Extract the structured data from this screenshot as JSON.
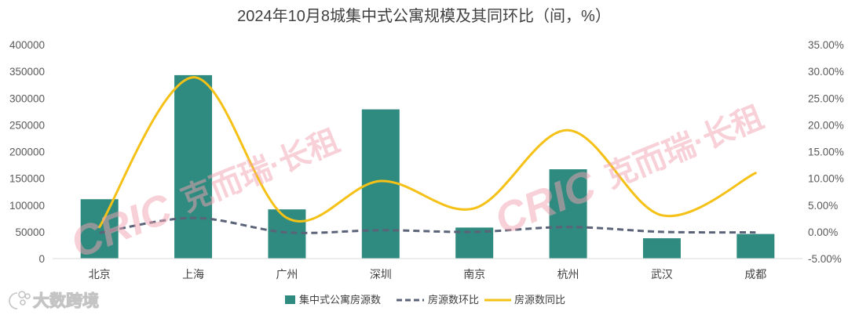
{
  "colors": {
    "bar": "#2F8B7F",
    "mom_line": "#5A6378",
    "yoy_line": "#F5C116",
    "axis_text": "#595959",
    "axis_line": "#D9D9D9",
    "watermark": "#F2A3B3"
  },
  "chart_data": {
    "type": "bar",
    "title": "2024年10月8城集中式公寓规模及其同环比（间，%）",
    "xlabel": "",
    "ylabel": "",
    "categories": [
      "北京",
      "上海",
      "广州",
      "深圳",
      "南京",
      "杭州",
      "武汉",
      "成都"
    ],
    "series": [
      {
        "name": "集中式公寓房源数",
        "type": "bar",
        "axis": "left",
        "values": [
          111000,
          343000,
          92000,
          279000,
          58000,
          167000,
          38000,
          46000
        ]
      },
      {
        "name": "房源数环比",
        "type": "line",
        "style": "dashed",
        "smooth": true,
        "axis": "right",
        "values": [
          -0.2,
          2.6,
          -0.1,
          0.3,
          0.0,
          0.9,
          0.0,
          -0.1
        ]
      },
      {
        "name": "房源数同比",
        "type": "line",
        "style": "solid",
        "smooth": true,
        "axis": "right",
        "values": [
          0.9,
          28.9,
          2.6,
          9.5,
          4.4,
          19.0,
          3.1,
          11.0
        ]
      }
    ],
    "ylim": [
      0,
      400000
    ],
    "y2lim": [
      -5,
      35
    ],
    "y_ticks": [
      "0",
      "50000",
      "100000",
      "150000",
      "200000",
      "250000",
      "300000",
      "350000",
      "400000"
    ],
    "y2_ticks": [
      "-5.00%",
      "0.00%",
      "5.00%",
      "10.00%",
      "15.00%",
      "20.00%",
      "25.00%",
      "30.00%",
      "35.00%"
    ],
    "grid": false,
    "legend_position": "bottom"
  },
  "watermarks": {
    "brand_mark": "CRIC",
    "brand_text": "克而瑞·长租",
    "source_logo": "大数跨境"
  }
}
